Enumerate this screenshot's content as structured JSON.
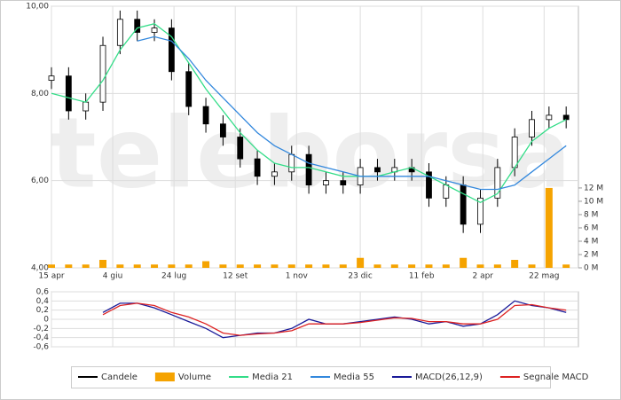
{
  "chart_data": [
    {
      "type": "candlestick",
      "watermark": "teleborsa",
      "x": [
        0,
        14,
        28,
        42,
        56,
        70,
        84,
        98,
        112,
        126,
        140,
        154,
        168,
        182,
        196,
        210,
        224,
        238,
        252,
        266,
        280,
        294,
        308,
        322,
        336,
        350,
        364,
        378,
        392,
        406,
        420
      ],
      "xlim": [
        0,
        430
      ],
      "xticks": [
        {
          "value": 0,
          "label": "15 apr"
        },
        {
          "value": 50,
          "label": "4 giu"
        },
        {
          "value": 100,
          "label": "24 lug"
        },
        {
          "value": 150,
          "label": "12 set"
        },
        {
          "value": 200,
          "label": "1 nov"
        },
        {
          "value": 252,
          "label": "23 dic"
        },
        {
          "value": 302,
          "label": "11 feb"
        },
        {
          "value": 352,
          "label": "2 apr"
        },
        {
          "value": 402,
          "label": "22 mag"
        }
      ],
      "ylim": [
        4,
        10
      ],
      "yticks": [
        {
          "value": 4,
          "label": "4,00"
        },
        {
          "value": 6,
          "label": "6,00"
        },
        {
          "value": 8,
          "label": "8,00"
        },
        {
          "value": 10,
          "label": "10,00"
        }
      ],
      "y2lim": [
        0,
        39.3
      ],
      "y2ticks": [
        {
          "value": 0,
          "label": "0 M"
        },
        {
          "value": 2,
          "label": "2 M"
        },
        {
          "value": 4,
          "label": "4 M"
        },
        {
          "value": 6,
          "label": "6 M"
        },
        {
          "value": 8,
          "label": "8 M"
        },
        {
          "value": 10,
          "label": "10 M"
        },
        {
          "value": 12,
          "label": "12 M"
        }
      ],
      "grid": true,
      "series": [
        {
          "name": "Candele",
          "type": "candlestick",
          "color": "#000000",
          "open": [
            8.3,
            8.4,
            7.6,
            7.8,
            9.1,
            9.7,
            9.4,
            9.5,
            8.5,
            7.7,
            7.3,
            7.0,
            6.5,
            6.1,
            6.2,
            6.6,
            5.9,
            6.0,
            5.9,
            6.3,
            6.2,
            6.3,
            6.2,
            5.6,
            5.9,
            5.0,
            5.6,
            6.3,
            7.0,
            7.4,
            7.5
          ],
          "high": [
            8.6,
            8.6,
            8.0,
            9.3,
            9.9,
            9.9,
            9.7,
            9.7,
            8.7,
            7.9,
            7.5,
            7.2,
            6.7,
            6.4,
            6.8,
            6.8,
            6.2,
            6.2,
            6.5,
            6.5,
            6.5,
            6.5,
            6.4,
            6.1,
            6.1,
            5.8,
            6.5,
            7.2,
            7.6,
            7.7,
            7.7
          ],
          "low": [
            8.1,
            7.4,
            7.4,
            7.6,
            8.9,
            9.2,
            9.2,
            8.3,
            7.5,
            7.1,
            6.8,
            6.3,
            5.9,
            5.9,
            6.0,
            5.7,
            5.7,
            5.7,
            5.7,
            6.0,
            6.0,
            6.0,
            5.4,
            5.4,
            4.8,
            4.8,
            5.4,
            6.1,
            6.8,
            7.2,
            7.2
          ],
          "close": [
            8.4,
            7.6,
            7.8,
            9.1,
            9.7,
            9.4,
            9.5,
            8.5,
            7.7,
            7.3,
            7.0,
            6.5,
            6.1,
            6.2,
            6.6,
            5.9,
            6.0,
            5.9,
            6.3,
            6.2,
            6.3,
            6.2,
            5.6,
            5.9,
            5.0,
            5.6,
            6.3,
            7.0,
            7.4,
            7.5,
            7.4
          ]
        },
        {
          "name": "Volume",
          "type": "bar",
          "axis": "y2",
          "color": "#f5a300",
          "values": [
            0.5,
            0.5,
            0.5,
            1.2,
            0.5,
            0.5,
            0.5,
            0.5,
            0.5,
            1.0,
            0.5,
            0.5,
            0.5,
            0.5,
            0.5,
            0.5,
            0.5,
            0.5,
            1.5,
            0.5,
            0.5,
            0.5,
            0.5,
            0.5,
            1.5,
            0.5,
            0.5,
            1.2,
            0.5,
            12,
            0.5
          ]
        },
        {
          "name": "Media 21",
          "type": "line",
          "color": "#33dd88",
          "values": [
            8.0,
            7.9,
            7.8,
            8.3,
            9.0,
            9.5,
            9.6,
            9.3,
            8.7,
            8.1,
            7.6,
            7.1,
            6.7,
            6.4,
            6.3,
            6.3,
            6.2,
            6.1,
            6.1,
            6.1,
            6.2,
            6.3,
            6.1,
            5.9,
            5.7,
            5.5,
            5.7,
            6.3,
            6.9,
            7.2,
            7.4
          ]
        },
        {
          "name": "Media 55",
          "type": "line",
          "color": "#3388dd",
          "values": [
            null,
            null,
            null,
            null,
            null,
            9.2,
            9.3,
            9.2,
            8.8,
            8.3,
            7.9,
            7.5,
            7.1,
            6.8,
            6.6,
            6.4,
            6.3,
            6.2,
            6.1,
            6.1,
            6.1,
            6.1,
            6.1,
            6.0,
            5.9,
            5.8,
            5.8,
            5.9,
            6.2,
            6.5,
            6.8
          ]
        }
      ]
    },
    {
      "type": "line",
      "x": [
        0,
        14,
        28,
        42,
        56,
        70,
        84,
        98,
        112,
        126,
        140,
        154,
        168,
        182,
        196,
        210,
        224,
        238,
        252,
        266,
        280,
        294,
        308,
        322,
        336,
        350,
        364,
        378,
        392,
        406,
        420
      ],
      "xlim": [
        0,
        430
      ],
      "ylim": [
        -0.6,
        0.6
      ],
      "yticks": [
        {
          "value": 0.6,
          "label": "0,6"
        },
        {
          "value": 0.4,
          "label": "0,4"
        },
        {
          "value": 0.2,
          "label": "0,2"
        },
        0,
        {
          "value": -0.2,
          "label": "-0,2"
        },
        {
          "value": -0.4,
          "label": "-0,4"
        },
        {
          "value": -0.6,
          "label": "-0,6"
        }
      ],
      "series": [
        {
          "name": "MACD(26,12,9)",
          "color": "#1a1a99",
          "values": [
            null,
            null,
            null,
            0.15,
            0.35,
            0.35,
            0.25,
            0.1,
            -0.05,
            -0.2,
            -0.4,
            -0.35,
            -0.3,
            -0.3,
            -0.2,
            0.0,
            -0.1,
            -0.1,
            -0.05,
            0.0,
            0.05,
            0.0,
            -0.1,
            -0.05,
            -0.15,
            -0.1,
            0.1,
            0.4,
            0.3,
            0.25,
            0.15
          ]
        },
        {
          "name": "Segnale MACD",
          "color": "#dd2222",
          "values": [
            null,
            null,
            null,
            0.1,
            0.3,
            0.35,
            0.3,
            0.15,
            0.05,
            -0.1,
            -0.3,
            -0.35,
            -0.32,
            -0.3,
            -0.25,
            -0.1,
            -0.1,
            -0.1,
            -0.07,
            -0.02,
            0.03,
            0.02,
            -0.05,
            -0.05,
            -0.1,
            -0.1,
            0.0,
            0.3,
            0.32,
            0.25,
            0.2
          ]
        }
      ]
    }
  ]
}
